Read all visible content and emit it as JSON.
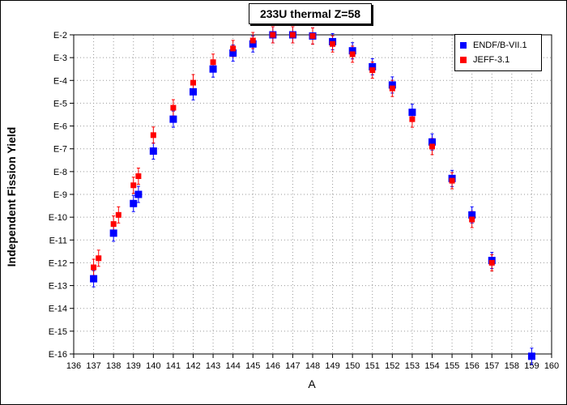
{
  "chart_data": {
    "type": "scatter",
    "title": "233U thermal Z=58",
    "xlabel": "A",
    "ylabel": "Independent Fission Yield",
    "xlim": [
      136,
      160
    ],
    "ylim_exponent": [
      -16,
      -2
    ],
    "y_scale": "log",
    "x_ticks": [
      "136",
      "137",
      "138",
      "139",
      "140",
      "141",
      "142",
      "143",
      "144",
      "145",
      "146",
      "147",
      "148",
      "149",
      "150",
      "151",
      "152",
      "153",
      "154",
      "155",
      "156",
      "157",
      "158",
      "159",
      "160"
    ],
    "y_ticks": [
      "E-2",
      "E-3",
      "E-4",
      "E-5",
      "E-6",
      "E-7",
      "E-8",
      "E-9",
      "E-10",
      "E-11",
      "E-12",
      "E-13",
      "E-14",
      "E-15",
      "E-16"
    ],
    "grid": true,
    "legend_position": "top-right",
    "series": [
      {
        "name": "ENDF/B-VII.1",
        "color": "#0000ff",
        "marker": "square",
        "points": [
          {
            "x": 137.0,
            "y": "E-12.7"
          },
          {
            "x": 138.0,
            "y": "E-10.7"
          },
          {
            "x": 139.0,
            "y": "E-9.4"
          },
          {
            "x": 139.25,
            "y": "E-9"
          },
          {
            "x": 140.0,
            "y": "E-7.1"
          },
          {
            "x": 141.0,
            "y": "E-5.7"
          },
          {
            "x": 142.0,
            "y": "E-4.5"
          },
          {
            "x": 143.0,
            "y": "E-3.5"
          },
          {
            "x": 144.0,
            "y": "E-2.8"
          },
          {
            "x": 145.0,
            "y": "E-2.4"
          },
          {
            "x": 146.0,
            "y": "E-2"
          },
          {
            "x": 147.0,
            "y": "E-2"
          },
          {
            "x": 148.0,
            "y": "E-2.05"
          },
          {
            "x": 149.0,
            "y": "E-2.3"
          },
          {
            "x": 150.0,
            "y": "E-2.7"
          },
          {
            "x": 151.0,
            "y": "E-3.4"
          },
          {
            "x": 152.0,
            "y": "E-4.2"
          },
          {
            "x": 153.0,
            "y": "E-5.4"
          },
          {
            "x": 154.0,
            "y": "E-6.7"
          },
          {
            "x": 155.0,
            "y": "E-8.3"
          },
          {
            "x": 156.0,
            "y": "E-9.9"
          },
          {
            "x": 157.0,
            "y": "E-11.9"
          },
          {
            "x": 159.0,
            "y": "E-16.1"
          }
        ]
      },
      {
        "name": "JEFF-3.1",
        "color": "#ff0000",
        "marker": "square",
        "points": [
          {
            "x": 137.0,
            "y": "E-12.2"
          },
          {
            "x": 137.25,
            "y": "E-11.8"
          },
          {
            "x": 138.0,
            "y": "E-10.3"
          },
          {
            "x": 138.25,
            "y": "E-9.9"
          },
          {
            "x": 139.0,
            "y": "E-8.6"
          },
          {
            "x": 139.25,
            "y": "E-8.2"
          },
          {
            "x": 140.0,
            "y": "E-6.4"
          },
          {
            "x": 141.0,
            "y": "E-5.2"
          },
          {
            "x": 142.0,
            "y": "E-4.1"
          },
          {
            "x": 143.0,
            "y": "E-3.2"
          },
          {
            "x": 144.0,
            "y": "E-2.6"
          },
          {
            "x": 145.0,
            "y": "E-2.25"
          },
          {
            "x": 146.0,
            "y": "E-2"
          },
          {
            "x": 147.0,
            "y": "E-2"
          },
          {
            "x": 148.0,
            "y": "E-2.05"
          },
          {
            "x": 149.0,
            "y": "E-2.4"
          },
          {
            "x": 150.0,
            "y": "E-2.85"
          },
          {
            "x": 151.0,
            "y": "E-3.55"
          },
          {
            "x": 152.0,
            "y": "E-4.35"
          },
          {
            "x": 153.0,
            "y": "E-5.7"
          },
          {
            "x": 154.0,
            "y": "E-6.9"
          },
          {
            "x": 155.0,
            "y": "E-8.4"
          },
          {
            "x": 156.0,
            "y": "E-10.1"
          },
          {
            "x": 157.0,
            "y": "E-12"
          }
        ]
      }
    ]
  }
}
